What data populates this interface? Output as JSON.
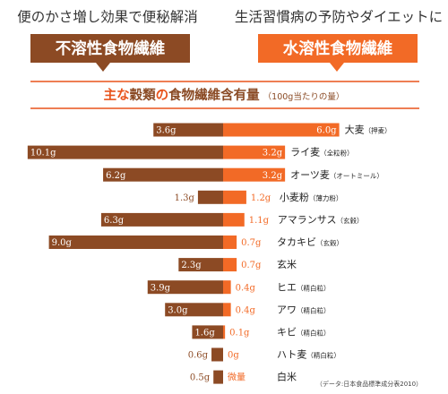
{
  "header": {
    "left_caption": "便のかさ増し効果で便秘解消",
    "right_caption": "生活習慣病の予防やダイエットに",
    "left_badge": "不溶性食物繊維",
    "right_badge": "水溶性食物繊維"
  },
  "chart_data": {
    "type": "bar",
    "title": {
      "part1": "主な",
      "part2": "穀類",
      "part3": "の",
      "part4": "食物繊維含有量",
      "unit_note": "（100g当たりの量）"
    },
    "categories": [
      {
        "name": "大麦",
        "note": "（押麦）"
      },
      {
        "name": "ライ麦",
        "note": "（全粒粉）"
      },
      {
        "name": "オーツ麦",
        "note": "（オートミール）"
      },
      {
        "name": "小麦粉",
        "note": "（薄力粉）"
      },
      {
        "name": "アマランサス",
        "note": "（玄穀）"
      },
      {
        "name": "タカキビ",
        "note": "（玄穀）"
      },
      {
        "name": "玄米",
        "note": ""
      },
      {
        "name": "ヒエ",
        "note": "（精白粒）"
      },
      {
        "name": "アワ",
        "note": "（精白粒）"
      },
      {
        "name": "キビ",
        "note": "（精白粒）"
      },
      {
        "name": "ハト麦",
        "note": "（精白粒）"
      },
      {
        "name": "白米",
        "note": ""
      }
    ],
    "series": [
      {
        "name": "不溶性食物繊維",
        "values": [
          3.6,
          10.1,
          6.2,
          1.3,
          6.3,
          9.0,
          2.3,
          3.9,
          3.0,
          1.6,
          0.6,
          0.5
        ],
        "labels": [
          "3.6g",
          "10.1g",
          "6.2g",
          "1.3g",
          "6.3g",
          "9.0g",
          "2.3g",
          "3.9g",
          "3.0g",
          "1.6g",
          "0.6g",
          "0.5g"
        ]
      },
      {
        "name": "水溶性食物繊維",
        "values": [
          6.0,
          3.2,
          3.2,
          1.2,
          1.1,
          0.7,
          0.7,
          0.4,
          0.4,
          0.1,
          0,
          0
        ],
        "labels": [
          "6.0g",
          "3.2g",
          "3.2g",
          "1.2g",
          "1.1g",
          "0.7g",
          "0.7g",
          "0.4g",
          "0.4g",
          "0.1g",
          "0g",
          "微量"
        ]
      }
    ],
    "source_note": "（データ:日本食品標準成分表2010）"
  },
  "colors": {
    "insoluble": "#8c4a24",
    "soluble": "#f26a26",
    "title_accent": "#e8541c",
    "title_dark": "#8a4a24",
    "rule": "#e8541c"
  }
}
